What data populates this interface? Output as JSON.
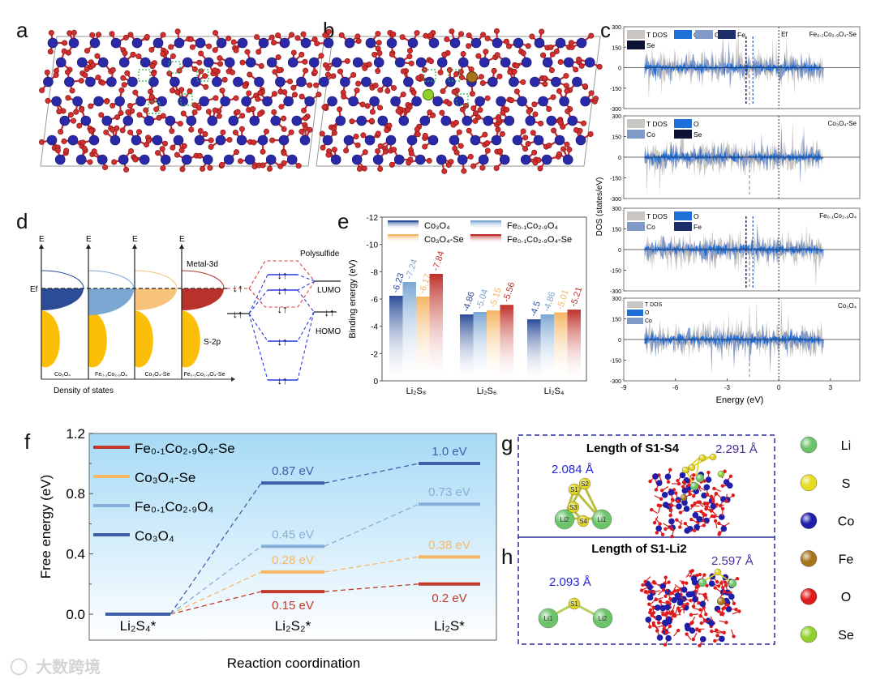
{
  "panel_labels": {
    "a": "a",
    "b": "b",
    "c": "c",
    "d": "d",
    "e": "e",
    "f": "f",
    "g": "g",
    "h": "h"
  },
  "dos": {
    "ylabel": "DOS (states/eV)",
    "xlabel": "Energy (eV)",
    "xticks": [
      "-9",
      "-6",
      "-3",
      "0",
      "3"
    ],
    "yticks": [
      "300",
      "150",
      "0",
      "-150",
      "-300"
    ],
    "fermi_label": "Ef",
    "colors": {
      "tdos": "#c9c5c1",
      "o": "#1f6fd8",
      "co": "#8099c8",
      "fe": "#1e2e6b",
      "se": "#0b1233"
    },
    "panels": [
      {
        "name": "Fe₀.₁Co₂.₉O₄-Se",
        "legend": [
          "T DOS",
          "O",
          "Co",
          "Fe",
          "Se"
        ]
      },
      {
        "name": "Co₃O₄-Se",
        "legend": [
          "T DOS",
          "O",
          "Co",
          "Se"
        ]
      },
      {
        "name": "Fe₀.₁Co₂.₉O₄",
        "legend": [
          "T DOS",
          "O",
          "Co",
          "Fe"
        ]
      },
      {
        "name": "Co₃O₄",
        "legend": [
          "T DOS",
          "O",
          "Co"
        ]
      }
    ]
  },
  "d": {
    "axis_label": "E",
    "fermi_label": "Ef",
    "metal_label": "Metal-3d",
    "sulfur_label": "S-2p",
    "xlabel": "Density of states",
    "materials": [
      "Co₃O₄",
      "Fe₀.₁Co₂.₉O₄",
      "Co₃O₄-Se",
      "Fe₀.₁Co₂.₉O₄-Se"
    ],
    "colors": [
      "#2c4c98",
      "#7ba7d3",
      "#f7c27a",
      "#b8322b"
    ],
    "polysulfide_label": "Polysulfide",
    "lumo_label": "LUMO",
    "homo_label": "HOMO",
    "spin_pair": "↓↑"
  },
  "chart_data": [
    {
      "type": "bar",
      "title": "",
      "xlabel": "",
      "ylabel": "Binding energy (eV)",
      "ylim": [
        0,
        -12
      ],
      "yticks": [
        "0",
        "-2",
        "-4",
        "-6",
        "-8",
        "-10",
        "-12"
      ],
      "categories": [
        "Li₂S₈",
        "Li₂S₆",
        "Li₂S₄"
      ],
      "legend_placement": "top",
      "series": [
        {
          "name": "Co₃O₄",
          "color": "#2c4c98",
          "values": [
            -6.23,
            -4.86,
            -4.5
          ],
          "labels": [
            "-6.23",
            "-4.86",
            "-4.5"
          ]
        },
        {
          "name": "Fe₀.₁Co₂.₉O₄",
          "color": "#7ba7d3",
          "values": [
            -7.24,
            -5.04,
            -4.86
          ],
          "labels": [
            "-7.24",
            "-5.04",
            "-4.86"
          ]
        },
        {
          "name": "Co₃O₄-Se",
          "color": "#f5b562",
          "values": [
            -6.17,
            -5.15,
            -5.01
          ],
          "labels": [
            "-6.17",
            "-5.15",
            "-5.01"
          ]
        },
        {
          "name": "Fe₀.₁Co₂.₉O₄-Se",
          "color": "#c0302a",
          "values": [
            -7.84,
            -5.56,
            -5.21
          ],
          "labels": [
            "-7.84",
            "-5.56",
            "-5.21"
          ]
        }
      ]
    },
    {
      "type": "line",
      "title": "",
      "xlabel": "Reaction coordination",
      "ylabel": "Free energy (eV)",
      "ylim": [
        -0.2,
        1.2
      ],
      "yticks": [
        "0.0",
        "0.4",
        "0.8",
        "1.2"
      ],
      "categories": [
        "Li₂S₄*",
        "Li₂S₂*",
        "Li₂S*"
      ],
      "legend_placement": "top-left",
      "series": [
        {
          "name": "Fe₀.₁Co₂.₉O₄-Se",
          "color": "#c0392b",
          "values": [
            0,
            0.15,
            0.2
          ],
          "labels": [
            "",
            "0.15 eV",
            "0.2 eV"
          ]
        },
        {
          "name": "Co₃O₄-Se",
          "color": "#f6b867",
          "values": [
            0,
            0.28,
            0.38
          ],
          "labels": [
            "",
            "0.28 eV",
            "0.38 eV"
          ]
        },
        {
          "name": "Fe₀.₁Co₂.₉O₄",
          "color": "#86aed8",
          "values": [
            0,
            0.45,
            0.73
          ],
          "labels": [
            "",
            "0.45 eV",
            "0.73 eV"
          ]
        },
        {
          "name": "Co₃O₄",
          "color": "#3e5fa8",
          "values": [
            0,
            0.87,
            1.0
          ],
          "labels": [
            "",
            "0.87 eV",
            "1.0 eV"
          ]
        }
      ]
    }
  ],
  "g": {
    "title": "Length of S1-S4",
    "isolated_length": "2.084 Å",
    "adsorbed_length": "2.291 Å",
    "atoms": [
      "S1",
      "S2",
      "S3",
      "S4",
      "Li1",
      "Li2"
    ]
  },
  "h": {
    "title": "Length of S1-Li2",
    "isolated_length": "2.093 Å",
    "adsorbed_length": "2.597 Å",
    "atoms": [
      "S1",
      "Li1",
      "Li2"
    ]
  },
  "element_legend": [
    {
      "label": "Li",
      "color": "#6cc46a"
    },
    {
      "label": "S",
      "color": "#e6dc1e"
    },
    {
      "label": "Co",
      "color": "#1e1ea8"
    },
    {
      "label": "Fe",
      "color": "#a8741a"
    },
    {
      "label": "O",
      "color": "#e01b1b"
    },
    {
      "label": "Se",
      "color": "#8fd12a"
    }
  ],
  "watermark": "大数跨境"
}
